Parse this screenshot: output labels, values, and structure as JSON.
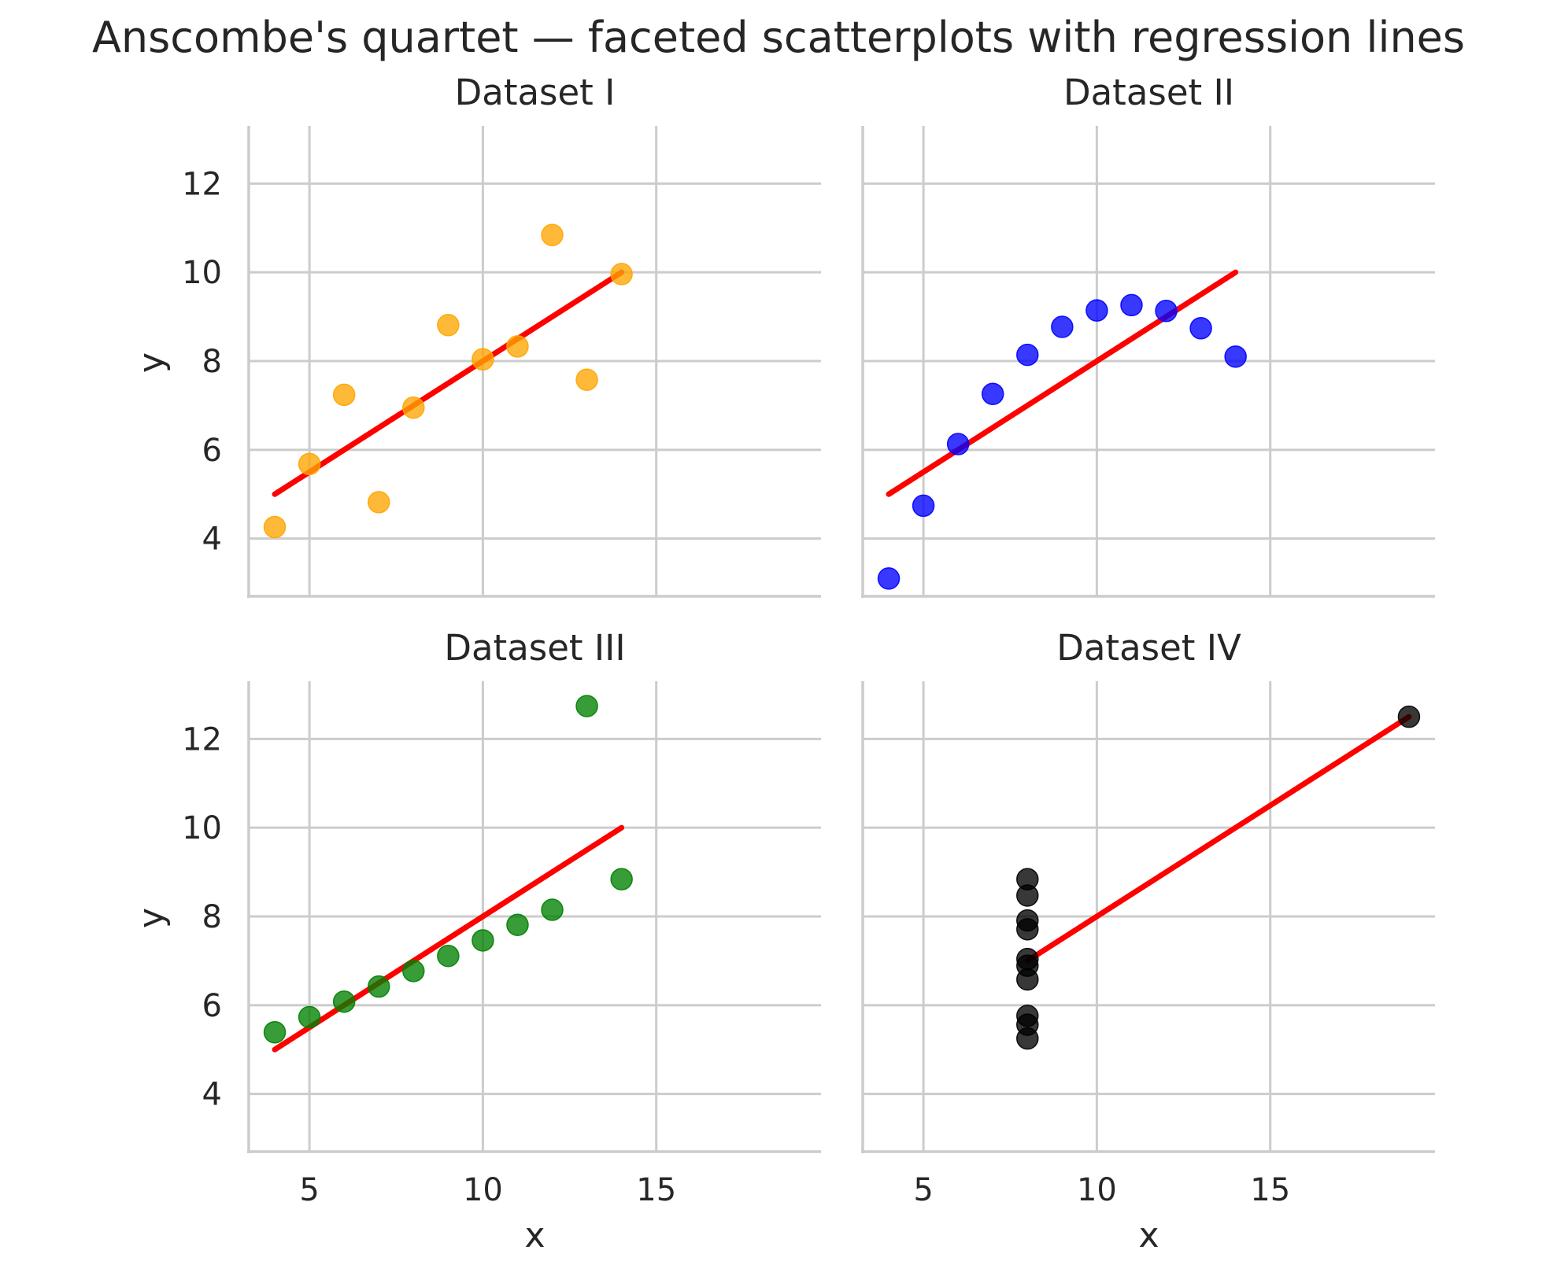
{
  "title": "Anscombe's quartet — faceted scatterplots with regression lines",
  "chart_data": {
    "type": "scatter",
    "facet_layout": "2x2 grid, shared x and y axes",
    "xlabel": "x",
    "ylabel": "y",
    "xticks": [
      5,
      10,
      15
    ],
    "yticks": [
      4,
      6,
      8,
      10,
      12
    ],
    "xlim": [
      3.25,
      19.75
    ],
    "ylim": [
      2.7,
      13.3
    ],
    "grid": true,
    "regression_color": "#ff0000",
    "panels": [
      {
        "title": "Dataset I",
        "color": "#ffa500",
        "x": [
          10,
          8,
          13,
          9,
          11,
          14,
          6,
          4,
          12,
          7,
          5
        ],
        "y": [
          8.04,
          6.95,
          7.58,
          8.81,
          8.33,
          9.96,
          7.24,
          4.26,
          10.84,
          4.82,
          5.68
        ],
        "regression": {
          "x": [
            4,
            14
          ],
          "y": [
            5.0,
            10.0
          ]
        }
      },
      {
        "title": "Dataset II",
        "color": "#0000ff",
        "x": [
          10,
          8,
          13,
          9,
          11,
          14,
          6,
          4,
          12,
          7,
          5
        ],
        "y": [
          9.14,
          8.14,
          8.74,
          8.77,
          9.26,
          8.1,
          6.13,
          3.1,
          9.13,
          7.26,
          4.74
        ],
        "regression": {
          "x": [
            4,
            14
          ],
          "y": [
            5.0,
            10.0
          ]
        }
      },
      {
        "title": "Dataset III",
        "color": "#008000",
        "x": [
          10,
          8,
          13,
          9,
          11,
          14,
          6,
          4,
          12,
          7,
          5
        ],
        "y": [
          7.46,
          6.77,
          12.74,
          7.11,
          7.81,
          8.84,
          6.08,
          5.39,
          8.15,
          6.42,
          5.73
        ],
        "regression": {
          "x": [
            4,
            14
          ],
          "y": [
            5.0,
            10.0
          ]
        }
      },
      {
        "title": "Dataset IV",
        "color": "#000000",
        "x": [
          8,
          8,
          8,
          8,
          8,
          8,
          8,
          19,
          8,
          8,
          8
        ],
        "y": [
          6.58,
          5.76,
          7.71,
          8.84,
          8.47,
          7.04,
          5.25,
          12.5,
          5.56,
          7.91,
          6.89
        ],
        "regression": {
          "x": [
            8,
            19
          ],
          "y": [
            7.0,
            12.5
          ]
        }
      }
    ]
  }
}
